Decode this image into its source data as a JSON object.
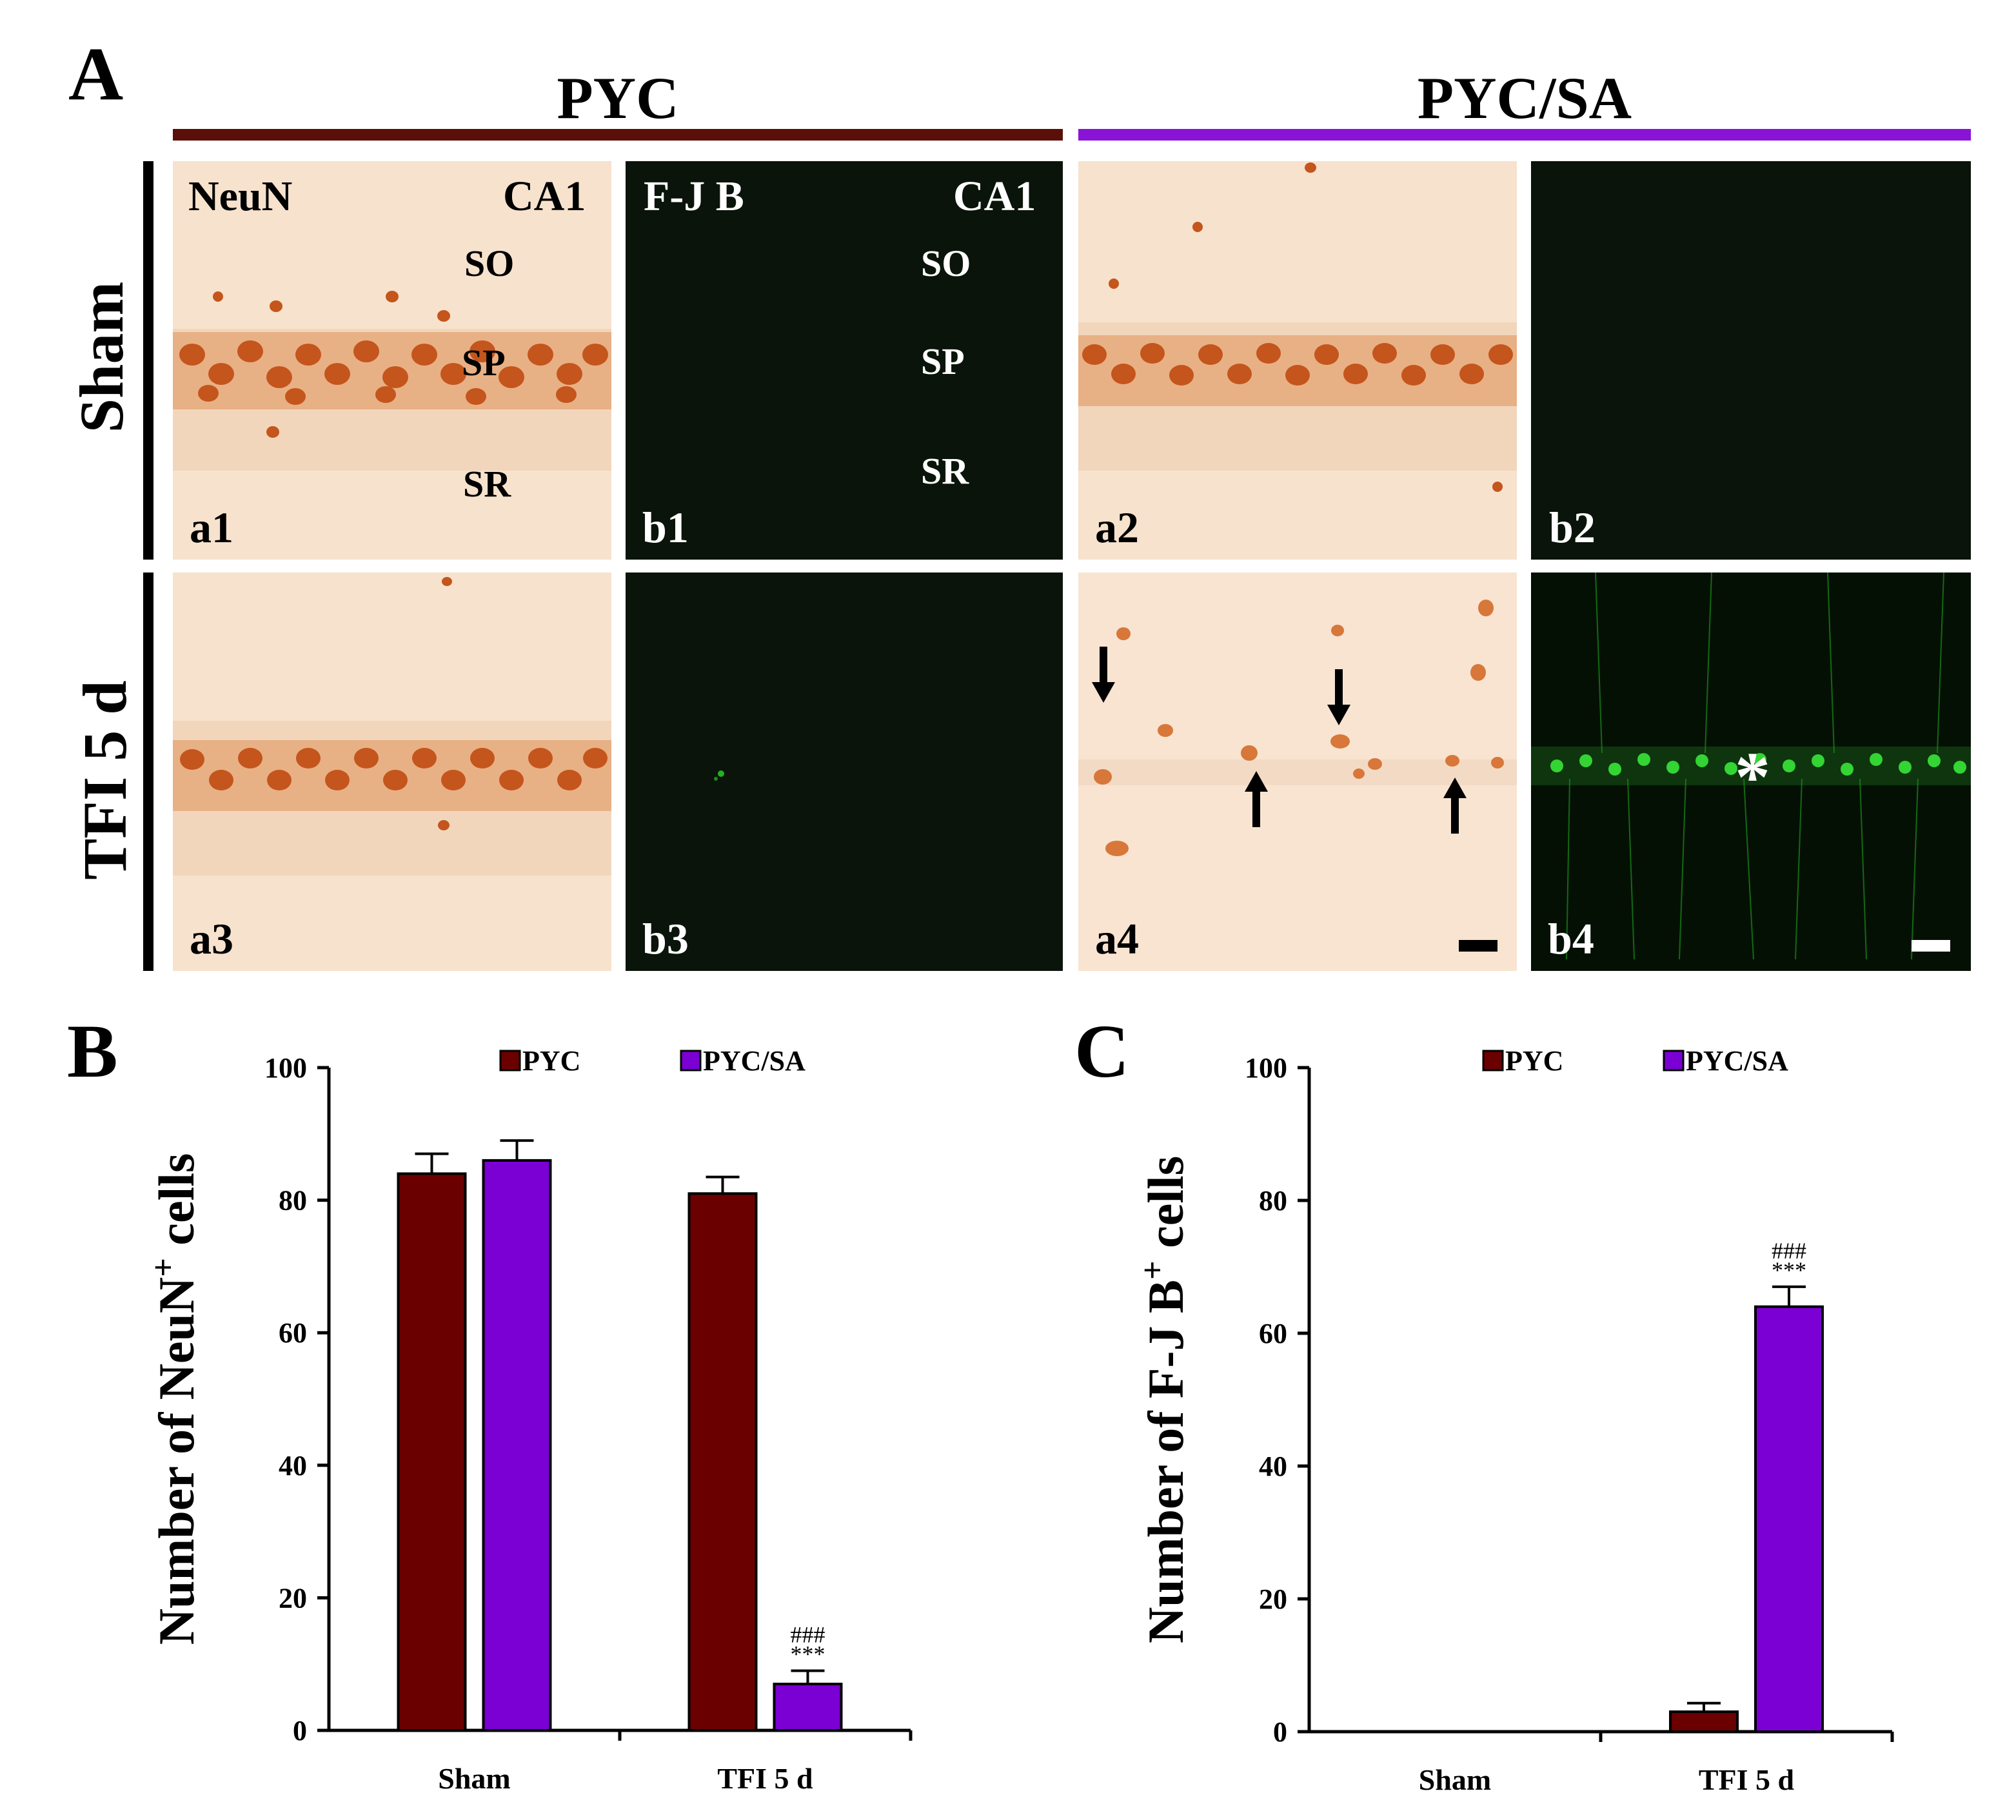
{
  "panelA": {
    "letter": "A",
    "groups": [
      {
        "title": "PYC",
        "color": "#5a0f08"
      },
      {
        "title": "PYC/SA",
        "color": "#8a14d6"
      }
    ],
    "rows": [
      "Sham",
      "TFI 5 d"
    ],
    "a1": {
      "stain": "NeuN",
      "region": "CA1",
      "so": "SO",
      "sp": "SP",
      "sr": "SR",
      "id": "a1"
    },
    "b1": {
      "stain": "F-J B",
      "region": "CA1",
      "so": "SO",
      "sp": "SP",
      "sr": "SR",
      "id": "b1"
    },
    "a2": {
      "id": "a2"
    },
    "b2": {
      "id": "b2"
    },
    "a3": {
      "id": "a3"
    },
    "b3": {
      "id": "b3"
    },
    "a4": {
      "id": "a4"
    },
    "b4": {
      "id": "b4",
      "marker": "*"
    }
  },
  "panelB": {
    "letter": "B"
  },
  "panelC": {
    "letter": "C"
  },
  "chart_data": [
    {
      "type": "bar",
      "panel": "B",
      "categories": [
        "Sham",
        "TFI 5 d"
      ],
      "series": [
        {
          "name": "PYC",
          "color": "#6b0000",
          "values": [
            84,
            81
          ],
          "errors": [
            3,
            2.5
          ]
        },
        {
          "name": "PYC/SA",
          "color": "#7b00d4",
          "values": [
            86,
            7
          ],
          "errors": [
            3,
            2
          ]
        }
      ],
      "annotations": [
        {
          "category": 1,
          "series": 1,
          "lines": [
            "###",
            "***"
          ]
        }
      ],
      "ylabel": "Number of NeuN",
      "ylabel_sup": "+",
      "ylabel_suffix": " cells",
      "yticks": [
        0,
        20,
        40,
        60,
        80,
        100
      ],
      "ylim": [
        0,
        100
      ]
    },
    {
      "type": "bar",
      "panel": "C",
      "categories": [
        "Sham",
        "TFI 5 d"
      ],
      "series": [
        {
          "name": "PYC",
          "color": "#6b0000",
          "values": [
            0,
            3
          ],
          "errors": [
            0,
            1.3
          ]
        },
        {
          "name": "PYC/SA",
          "color": "#7b00d4",
          "values": [
            0,
            64
          ],
          "errors": [
            0,
            3
          ]
        }
      ],
      "annotations": [
        {
          "category": 1,
          "series": 1,
          "lines": [
            "###",
            "***"
          ]
        }
      ],
      "ylabel": "Number of F-J B",
      "ylabel_sup": "+",
      "ylabel_suffix": " cells",
      "yticks": [
        0,
        20,
        40,
        60,
        80,
        100
      ],
      "ylim": [
        0,
        100
      ]
    }
  ]
}
